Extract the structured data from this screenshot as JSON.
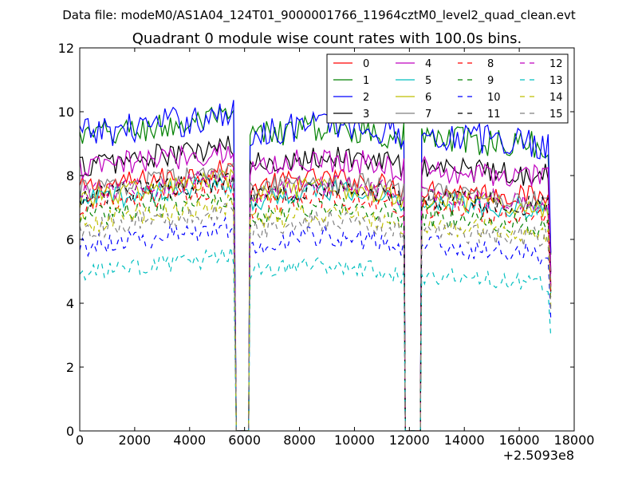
{
  "figure": {
    "suptitle": "Data file: modeM0/AS1A04_124T01_9000001766_11964cztM0_level2_quad_clean.evt"
  },
  "chart_data": {
    "type": "line",
    "title": "Quadrant 0 module wise count rates with 100.0s bins.",
    "xlabel": "",
    "ylabel": "",
    "x_offset_label": "+2.5093e8",
    "xlim": [
      0,
      18000
    ],
    "ylim": [
      0,
      12
    ],
    "x_ticks": [
      0,
      2000,
      4000,
      6000,
      8000,
      10000,
      12000,
      14000,
      16000,
      18000
    ],
    "y_ticks": [
      0,
      2,
      4,
      6,
      8,
      10,
      12
    ],
    "x_tick_labels": [
      "0",
      "2000",
      "4000",
      "6000",
      "8000",
      "10000",
      "12000",
      "14000",
      "16000",
      "18000"
    ],
    "y_tick_labels": [
      "0",
      "2",
      "4",
      "6",
      "8",
      "10",
      "12"
    ],
    "grid": false,
    "legend_position": "top-right",
    "legend_columns": 4,
    "gaps": [
      {
        "start": 5700,
        "end": 6150
      },
      {
        "start": 11850,
        "end": 12400
      }
    ],
    "segments": [
      {
        "start": 0,
        "end": 5650
      },
      {
        "start": 6200,
        "end": 11800
      },
      {
        "start": 12450,
        "end": 17100
      }
    ],
    "bin_seconds": 100,
    "series": [
      {
        "name": "0",
        "color": "#ff0000",
        "dash": "solid",
        "approx_mean": 7.6,
        "noise": 0.35
      },
      {
        "name": "1",
        "color": "#008000",
        "dash": "solid",
        "approx_mean": 9.2,
        "noise": 0.45
      },
      {
        "name": "2",
        "color": "#0000ff",
        "dash": "solid",
        "approx_mean": 9.3,
        "noise": 0.5
      },
      {
        "name": "3",
        "color": "#000000",
        "dash": "solid",
        "approx_mean": 8.3,
        "noise": 0.4
      },
      {
        "name": "4",
        "color": "#bf00bf",
        "dash": "solid",
        "approx_mean": 8.2,
        "noise": 0.4
      },
      {
        "name": "5",
        "color": "#00bfbf",
        "dash": "solid",
        "approx_mean": 7.2,
        "noise": 0.35
      },
      {
        "name": "6",
        "color": "#bfbf00",
        "dash": "solid",
        "approx_mean": 7.3,
        "noise": 0.35
      },
      {
        "name": "7",
        "color": "#808080",
        "dash": "solid",
        "approx_mean": 7.5,
        "noise": 0.35
      },
      {
        "name": "8",
        "color": "#ff0000",
        "dash": "dashed",
        "approx_mean": 7.0,
        "noise": 0.35
      },
      {
        "name": "9",
        "color": "#008000",
        "dash": "dashed",
        "approx_mean": 6.7,
        "noise": 0.35
      },
      {
        "name": "10",
        "color": "#0000ff",
        "dash": "dashed",
        "approx_mean": 5.8,
        "noise": 0.35
      },
      {
        "name": "11",
        "color": "#000000",
        "dash": "dashed",
        "approx_mean": 7.3,
        "noise": 0.35
      },
      {
        "name": "12",
        "color": "#bf00bf",
        "dash": "dashed",
        "approx_mean": 7.4,
        "noise": 0.35
      },
      {
        "name": "13",
        "color": "#00bfbf",
        "dash": "dashed",
        "approx_mean": 4.9,
        "noise": 0.3
      },
      {
        "name": "14",
        "color": "#bfbf00",
        "dash": "dashed",
        "approx_mean": 6.5,
        "noise": 0.35
      },
      {
        "name": "15",
        "color": "#808080",
        "dash": "dashed",
        "approx_mean": 6.3,
        "noise": 0.35
      }
    ]
  }
}
